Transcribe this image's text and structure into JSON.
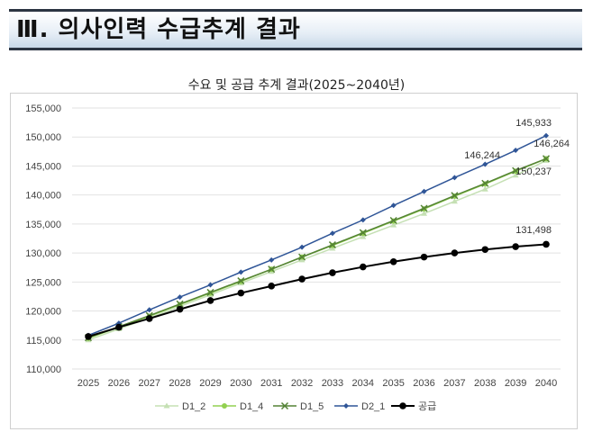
{
  "header": {
    "title": "Ⅲ. 의사인력 수급추계 결과"
  },
  "chart_data": {
    "type": "line",
    "title": "수요 및 공급 추계 결과(2025~2040년)",
    "xlabel": "",
    "ylabel": "",
    "categories": [
      "2025",
      "2026",
      "2027",
      "2028",
      "2029",
      "2030",
      "2031",
      "2032",
      "2033",
      "2034",
      "2035",
      "2036",
      "2037",
      "2038",
      "2039",
      "2040"
    ],
    "ylim": [
      110000,
      155000
    ],
    "yticks": [
      110000,
      115000,
      120000,
      125000,
      130000,
      135000,
      140000,
      145000,
      150000,
      155000
    ],
    "ytick_labels": [
      "110,000",
      "115,000",
      "120,000",
      "125,000",
      "130,000",
      "135,000",
      "140,000",
      "145,000",
      "150,000",
      "155,000"
    ],
    "grid": true,
    "legend_position": "bottom",
    "series": [
      {
        "name": "D1_2",
        "color": "#c5e0b4",
        "marker": "triangle",
        "values": [
          115000,
          116900,
          118800,
          120800,
          122800,
          124800,
          126800,
          128800,
          130800,
          132800,
          134800,
          136800,
          138900,
          141000,
          143400,
          145933
        ],
        "end_label": "145,933"
      },
      {
        "name": "D1_4",
        "color": "#92d050",
        "marker": "circle",
        "values": [
          115300,
          117200,
          119100,
          121100,
          123100,
          125100,
          127200,
          129300,
          131300,
          133400,
          135500,
          137600,
          139800,
          141900,
          144100,
          146244
        ],
        "end_label": "146,244"
      },
      {
        "name": "D1_5",
        "color": "#548235",
        "marker": "x",
        "values": [
          115400,
          117300,
          119200,
          121200,
          123200,
          125200,
          127200,
          129300,
          131400,
          133500,
          135600,
          137700,
          139900,
          142000,
          144200,
          146264
        ],
        "end_label": "146,264"
      },
      {
        "name": "D2_1",
        "color": "#2f5597",
        "marker": "diamond",
        "values": [
          115800,
          117900,
          120200,
          122400,
          124500,
          126700,
          128800,
          131000,
          133400,
          135700,
          138200,
          140600,
          143000,
          145300,
          147700,
          150237
        ],
        "end_label": "150,237"
      },
      {
        "name": "공급",
        "color": "#000000",
        "marker": "circle",
        "values": [
          115600,
          117200,
          118700,
          120300,
          121800,
          123100,
          124300,
          125500,
          126600,
          127600,
          128500,
          129300,
          130000,
          130600,
          131100,
          131498
        ],
        "end_label": "131,498"
      }
    ]
  }
}
